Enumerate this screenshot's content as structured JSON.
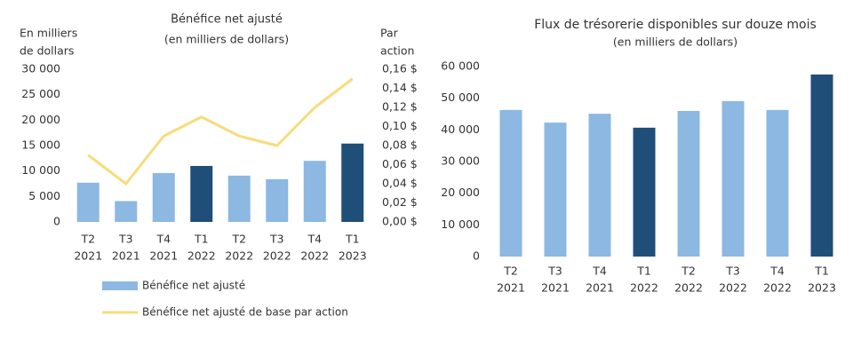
{
  "chart_data": [
    {
      "type": "bar",
      "title": "Bénéfice net ajusté",
      "subtitle": "(en milliers de dollars)",
      "ylabel": [
        "En milliers",
        "de dollars"
      ],
      "y2label": [
        "Par",
        "action"
      ],
      "categories": [
        [
          "T2",
          "2021"
        ],
        [
          "T3",
          "2021"
        ],
        [
          "T4",
          "2021"
        ],
        [
          "T1",
          "2022"
        ],
        [
          "T2",
          "2022"
        ],
        [
          "T3",
          "2022"
        ],
        [
          "T4",
          "2022"
        ],
        [
          "T1",
          "2023"
        ]
      ],
      "series": [
        {
          "name": "Bénéfice net ajusté",
          "type": "bar",
          "color": "#8cb8e2",
          "colors": [
            "#8cb8e2",
            "#8cb8e2",
            "#8cb8e2",
            "#1f4e79",
            "#8cb8e2",
            "#8cb8e2",
            "#8cb8e2",
            "#1f4e79"
          ],
          "values": [
            7700,
            4100,
            9600,
            11000,
            9100,
            8400,
            12000,
            15400
          ]
        },
        {
          "name": "Bénéfice net ajusté de base par action",
          "type": "line",
          "axis": "y2",
          "color": "#f7dc7c",
          "values": [
            0.07,
            0.04,
            0.09,
            0.11,
            0.09,
            0.08,
            0.12,
            0.15
          ]
        }
      ],
      "ylim": [
        0,
        30000
      ],
      "yticks": [
        0,
        {
          "value": 5000,
          "label": "5 000"
        },
        {
          "value": 10000,
          "label": "10 000"
        },
        {
          "value": 15000,
          "label": "15 000"
        },
        {
          "value": 20000,
          "label": "20 000"
        },
        {
          "value": 25000,
          "label": "25 000"
        },
        {
          "value": 30000,
          "label": "30 000"
        }
      ],
      "y2lim": [
        0,
        0.16
      ],
      "y2ticks": [
        {
          "value": 0,
          "label": "0,00 $"
        },
        {
          "value": 0.02,
          "label": "0,02 $"
        },
        {
          "value": 0.04,
          "label": "0,04 $"
        },
        {
          "value": 0.06,
          "label": "0,06 $"
        },
        {
          "value": 0.08,
          "label": "0,08 $"
        },
        {
          "value": 0.1,
          "label": "0,10 $"
        },
        {
          "value": 0.12,
          "label": "0,12 $"
        },
        {
          "value": 0.14,
          "label": "0,14 $"
        },
        {
          "value": 0.16,
          "label": "0,16 $"
        }
      ],
      "legend": "bottom"
    },
    {
      "type": "bar",
      "title": "Flux de trésorerie disponibles sur douze mois",
      "subtitle": "(en milliers de dollars)",
      "categories": [
        [
          "T2",
          "2021"
        ],
        [
          "T3",
          "2021"
        ],
        [
          "T4",
          "2021"
        ],
        [
          "T1",
          "2022"
        ],
        [
          "T2",
          "2022"
        ],
        [
          "T3",
          "2022"
        ],
        [
          "T4",
          "2022"
        ],
        [
          "T1",
          "2023"
        ]
      ],
      "series": [
        {
          "type": "bar",
          "color": "#8cb8e2",
          "colors": [
            "#8cb8e2",
            "#8cb8e2",
            "#8cb8e2",
            "#1f4e79",
            "#8cb8e2",
            "#8cb8e2",
            "#8cb8e2",
            "#1f4e79"
          ],
          "values": [
            46300,
            42300,
            45100,
            40700,
            46000,
            49100,
            46300,
            57500
          ]
        }
      ],
      "ylim": [
        0,
        60000
      ],
      "yticks": [
        0,
        {
          "value": 10000,
          "label": "10 000"
        },
        {
          "value": 20000,
          "label": "20 000"
        },
        {
          "value": 30000,
          "label": "30 000"
        },
        {
          "value": 40000,
          "label": "40 000"
        },
        {
          "value": 50000,
          "label": "50 000"
        },
        {
          "value": 60000,
          "label": "60 000"
        }
      ]
    }
  ]
}
